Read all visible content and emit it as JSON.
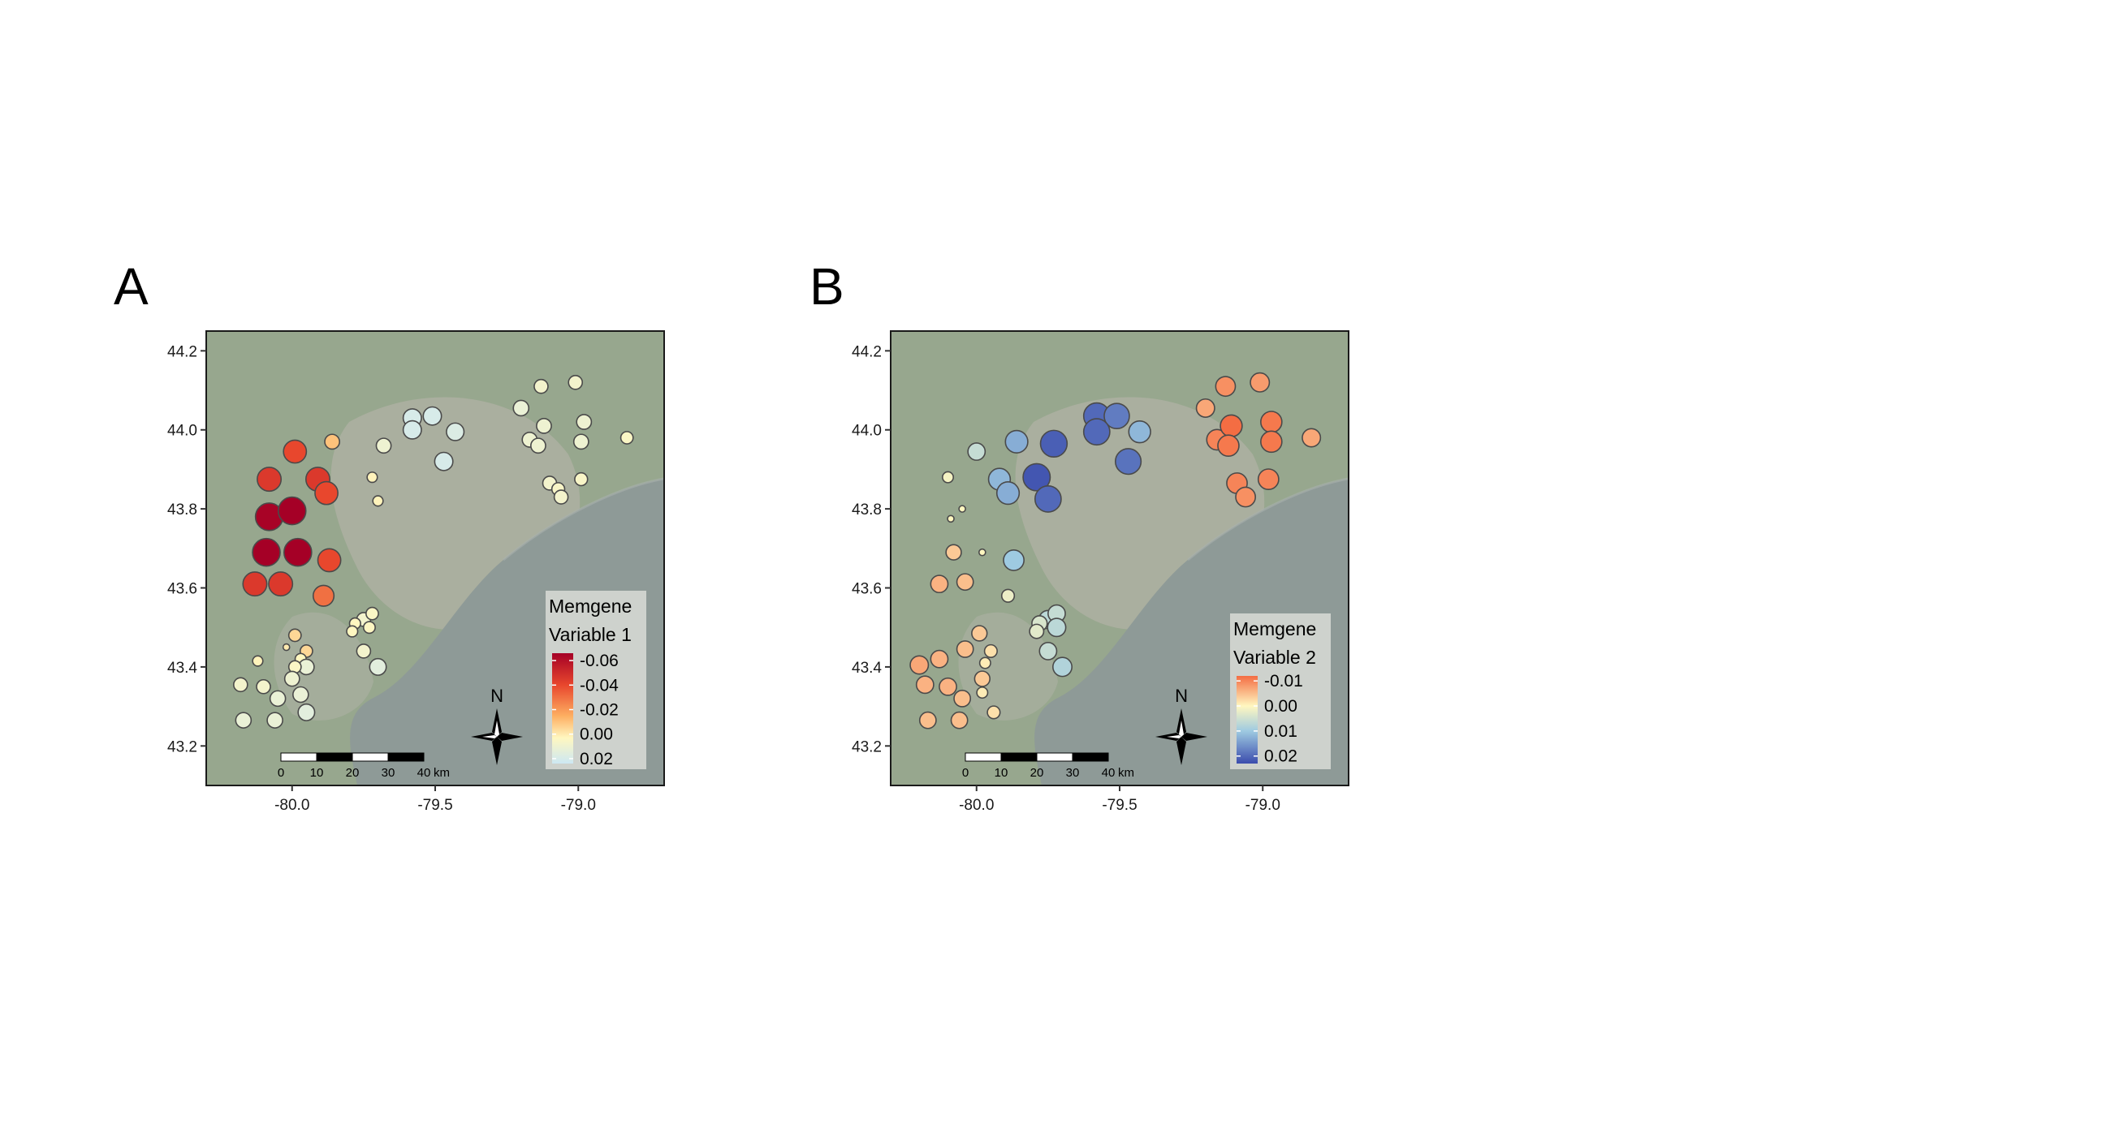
{
  "axes": {
    "x_ticks": [
      -80.0,
      -79.5,
      -79.0
    ],
    "x_tick_labels": [
      "-80.0",
      "-79.5",
      "-79.0"
    ],
    "y_ticks": [
      43.2,
      43.4,
      43.6,
      43.8,
      44.0,
      44.2
    ],
    "y_tick_labels": [
      "43.2",
      "43.4",
      "43.6",
      "43.8",
      "44.0",
      "44.2"
    ],
    "xlim": [
      -80.3,
      -78.7
    ],
    "ylim": [
      43.1,
      44.25
    ]
  },
  "basemap_colors": {
    "land": "#97a78e",
    "urban": "#b3b5a8",
    "lake": "#8e9a97",
    "frame": "#1a1a1a"
  },
  "scale_bar": {
    "ticks_km": [
      0,
      10,
      20,
      30,
      40
    ],
    "labels": [
      "0",
      "10",
      "20",
      "30",
      "40"
    ],
    "unit": "km"
  },
  "compass_label": "N",
  "panels": [
    {
      "letter": "A",
      "legend": {
        "title_line1": "Memgene",
        "title_line2": "Variable 1",
        "labels": [
          "-0.06",
          "-0.04",
          "-0.02",
          "0.00",
          "0.02"
        ],
        "stops": [
          -0.066,
          -0.04,
          -0.015,
          0.003,
          0.024
        ],
        "colors": [
          "#a50026",
          "#e8472d",
          "#fdae61",
          "#fff7c0",
          "#cde8f3"
        ],
        "range": [
          -0.066,
          0.024
        ]
      },
      "points": [
        {
          "lon": -80.08,
          "lat": 43.875,
          "v": -0.045
        },
        {
          "lon": -79.99,
          "lat": 43.945,
          "v": -0.04
        },
        {
          "lon": -79.86,
          "lat": 43.97,
          "v": -0.01
        },
        {
          "lon": -79.91,
          "lat": 43.875,
          "v": -0.045
        },
        {
          "lon": -79.88,
          "lat": 43.84,
          "v": -0.04
        },
        {
          "lon": -80.08,
          "lat": 43.78,
          "v": -0.065
        },
        {
          "lon": -80.0,
          "lat": 43.795,
          "v": -0.066
        },
        {
          "lon": -80.09,
          "lat": 43.69,
          "v": -0.066
        },
        {
          "lon": -79.98,
          "lat": 43.69,
          "v": -0.066
        },
        {
          "lon": -79.87,
          "lat": 43.67,
          "v": -0.04
        },
        {
          "lon": -80.13,
          "lat": 43.61,
          "v": -0.045
        },
        {
          "lon": -80.04,
          "lat": 43.61,
          "v": -0.045
        },
        {
          "lon": -79.89,
          "lat": 43.58,
          "v": -0.03
        },
        {
          "lon": -79.68,
          "lat": 43.96,
          "v": 0.01
        },
        {
          "lon": -79.72,
          "lat": 43.88,
          "v": 0.002
        },
        {
          "lon": -79.7,
          "lat": 43.82,
          "v": 0.002
        },
        {
          "lon": -79.58,
          "lat": 44.03,
          "v": 0.02
        },
        {
          "lon": -79.51,
          "lat": 44.035,
          "v": 0.02
        },
        {
          "lon": -79.58,
          "lat": 44.0,
          "v": 0.02
        },
        {
          "lon": -79.43,
          "lat": 43.995,
          "v": 0.018
        },
        {
          "lon": -79.47,
          "lat": 43.92,
          "v": 0.02
        },
        {
          "lon": -79.2,
          "lat": 44.055,
          "v": 0.012
        },
        {
          "lon": -79.13,
          "lat": 44.11,
          "v": 0.008
        },
        {
          "lon": -79.01,
          "lat": 44.12,
          "v": 0.008
        },
        {
          "lon": -79.17,
          "lat": 43.975,
          "v": 0.01
        },
        {
          "lon": -79.12,
          "lat": 44.01,
          "v": 0.01
        },
        {
          "lon": -78.98,
          "lat": 44.02,
          "v": 0.01
        },
        {
          "lon": -79.14,
          "lat": 43.96,
          "v": 0.01
        },
        {
          "lon": -78.99,
          "lat": 43.97,
          "v": 0.01
        },
        {
          "lon": -78.83,
          "lat": 43.98,
          "v": 0.005
        },
        {
          "lon": -79.1,
          "lat": 43.865,
          "v": 0.008
        },
        {
          "lon": -79.07,
          "lat": 43.85,
          "v": 0.006
        },
        {
          "lon": -79.06,
          "lat": 43.83,
          "v": 0.008
        },
        {
          "lon": -78.99,
          "lat": 43.875,
          "v": 0.006
        },
        {
          "lon": -79.75,
          "lat": 43.52,
          "v": 0.008
        },
        {
          "lon": -79.72,
          "lat": 43.535,
          "v": 0.005
        },
        {
          "lon": -79.73,
          "lat": 43.5,
          "v": 0.004
        },
        {
          "lon": -79.78,
          "lat": 43.51,
          "v": 0.003
        },
        {
          "lon": -79.79,
          "lat": 43.49,
          "v": 0.003
        },
        {
          "lon": -79.75,
          "lat": 43.44,
          "v": 0.008
        },
        {
          "lon": -79.7,
          "lat": 43.4,
          "v": 0.015
        },
        {
          "lon": -79.99,
          "lat": 43.48,
          "v": -0.005
        },
        {
          "lon": -80.02,
          "lat": 43.45,
          "v": 0.0
        },
        {
          "lon": -79.95,
          "lat": 43.44,
          "v": -0.005
        },
        {
          "lon": -79.97,
          "lat": 43.42,
          "v": 0.003
        },
        {
          "lon": -79.95,
          "lat": 43.4,
          "v": 0.012
        },
        {
          "lon": -79.99,
          "lat": 43.4,
          "v": 0.005
        },
        {
          "lon": -80.0,
          "lat": 43.37,
          "v": 0.01
        },
        {
          "lon": -79.97,
          "lat": 43.33,
          "v": 0.012
        },
        {
          "lon": -80.05,
          "lat": 43.32,
          "v": 0.012
        },
        {
          "lon": -79.95,
          "lat": 43.285,
          "v": 0.015
        },
        {
          "lon": -80.1,
          "lat": 43.35,
          "v": 0.008
        },
        {
          "lon": -80.18,
          "lat": 43.355,
          "v": 0.008
        },
        {
          "lon": -80.17,
          "lat": 43.265,
          "v": 0.012
        },
        {
          "lon": -80.06,
          "lat": 43.265,
          "v": 0.012
        },
        {
          "lon": -80.12,
          "lat": 43.415,
          "v": 0.002
        }
      ]
    },
    {
      "letter": "B",
      "legend": {
        "title_line1": "Memgene",
        "title_line2": "Variable 2",
        "labels": [
          "-0.01",
          "0.00",
          "0.01",
          "0.02"
        ],
        "stops": [
          -0.012,
          0.0,
          0.01,
          0.023
        ],
        "colors": [
          "#f46d43",
          "#fff7c0",
          "#9ecae1",
          "#3b4cad"
        ],
        "range": [
          -0.012,
          0.023
        ]
      },
      "points": [
        {
          "lon": -80.1,
          "lat": 43.88,
          "v": 0.001
        },
        {
          "lon": -80.0,
          "lat": 43.945,
          "v": 0.006
        },
        {
          "lon": -79.86,
          "lat": 43.97,
          "v": 0.013
        },
        {
          "lon": -79.92,
          "lat": 43.875,
          "v": 0.012
        },
        {
          "lon": -79.89,
          "lat": 43.84,
          "v": 0.013
        },
        {
          "lon": -80.05,
          "lat": 43.8,
          "v": 0.0
        },
        {
          "lon": -80.09,
          "lat": 43.775,
          "v": 0.0
        },
        {
          "lon": -80.08,
          "lat": 43.69,
          "v": -0.004
        },
        {
          "lon": -79.98,
          "lat": 43.69,
          "v": 0.0
        },
        {
          "lon": -79.87,
          "lat": 43.67,
          "v": 0.01
        },
        {
          "lon": -80.13,
          "lat": 43.61,
          "v": -0.006
        },
        {
          "lon": -80.04,
          "lat": 43.615,
          "v": -0.005
        },
        {
          "lon": -79.89,
          "lat": 43.58,
          "v": 0.002
        },
        {
          "lon": -79.73,
          "lat": 43.965,
          "v": 0.021
        },
        {
          "lon": -79.79,
          "lat": 43.88,
          "v": 0.022
        },
        {
          "lon": -79.75,
          "lat": 43.825,
          "v": 0.02
        },
        {
          "lon": -79.58,
          "lat": 44.035,
          "v": 0.02
        },
        {
          "lon": -79.51,
          "lat": 44.035,
          "v": 0.018
        },
        {
          "lon": -79.58,
          "lat": 43.995,
          "v": 0.02
        },
        {
          "lon": -79.43,
          "lat": 43.995,
          "v": 0.012
        },
        {
          "lon": -79.47,
          "lat": 43.92,
          "v": 0.019
        },
        {
          "lon": -79.2,
          "lat": 44.055,
          "v": -0.007
        },
        {
          "lon": -79.13,
          "lat": 44.11,
          "v": -0.009
        },
        {
          "lon": -79.01,
          "lat": 44.12,
          "v": -0.008
        },
        {
          "lon": -79.16,
          "lat": 43.975,
          "v": -0.01
        },
        {
          "lon": -79.11,
          "lat": 44.01,
          "v": -0.012
        },
        {
          "lon": -78.97,
          "lat": 44.02,
          "v": -0.011
        },
        {
          "lon": -79.12,
          "lat": 43.96,
          "v": -0.011
        },
        {
          "lon": -78.97,
          "lat": 43.97,
          "v": -0.011
        },
        {
          "lon": -78.83,
          "lat": 43.98,
          "v": -0.007
        },
        {
          "lon": -79.09,
          "lat": 43.865,
          "v": -0.01
        },
        {
          "lon": -79.06,
          "lat": 43.83,
          "v": -0.009
        },
        {
          "lon": -78.98,
          "lat": 43.875,
          "v": -0.01
        },
        {
          "lon": -79.75,
          "lat": 43.52,
          "v": 0.007
        },
        {
          "lon": -79.72,
          "lat": 43.535,
          "v": 0.006
        },
        {
          "lon": -79.72,
          "lat": 43.5,
          "v": 0.007
        },
        {
          "lon": -79.78,
          "lat": 43.51,
          "v": 0.004
        },
        {
          "lon": -79.79,
          "lat": 43.49,
          "v": 0.003
        },
        {
          "lon": -79.75,
          "lat": 43.44,
          "v": 0.006
        },
        {
          "lon": -79.7,
          "lat": 43.4,
          "v": 0.008
        },
        {
          "lon": -79.99,
          "lat": 43.485,
          "v": -0.004
        },
        {
          "lon": -80.04,
          "lat": 43.445,
          "v": -0.005
        },
        {
          "lon": -79.95,
          "lat": 43.44,
          "v": -0.002
        },
        {
          "lon": -79.97,
          "lat": 43.41,
          "v": -0.001
        },
        {
          "lon": -79.98,
          "lat": 43.37,
          "v": -0.004
        },
        {
          "lon": -79.98,
          "lat": 43.335,
          "v": -0.001
        },
        {
          "lon": -80.05,
          "lat": 43.32,
          "v": -0.005
        },
        {
          "lon": -79.94,
          "lat": 43.285,
          "v": -0.002
        },
        {
          "lon": -80.1,
          "lat": 43.35,
          "v": -0.006
        },
        {
          "lon": -80.18,
          "lat": 43.355,
          "v": -0.006
        },
        {
          "lon": -80.2,
          "lat": 43.405,
          "v": -0.007
        },
        {
          "lon": -80.13,
          "lat": 43.42,
          "v": -0.006
        },
        {
          "lon": -80.17,
          "lat": 43.265,
          "v": -0.005
        },
        {
          "lon": -80.06,
          "lat": 43.265,
          "v": -0.005
        }
      ]
    }
  ]
}
